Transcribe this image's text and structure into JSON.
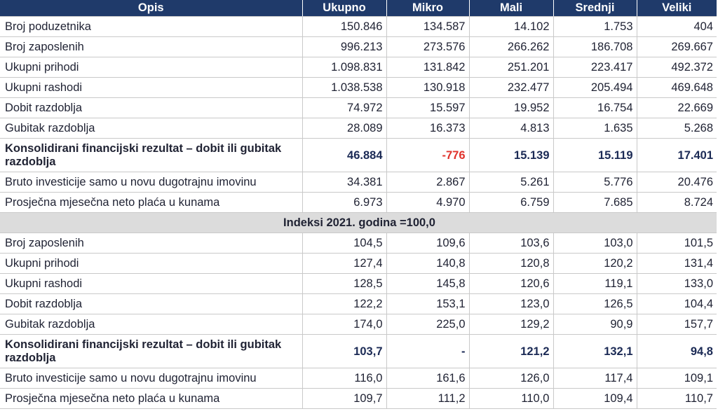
{
  "columns": [
    "Opis",
    "Ukupno",
    "Mikro",
    "Mali",
    "Srednji",
    "Veliki"
  ],
  "rows_top": [
    {
      "label": "Broj poduzetnika",
      "values": [
        "150.846",
        "134.587",
        "14.102",
        "1.753",
        "404"
      ]
    },
    {
      "label": "Broj zaposlenih",
      "values": [
        "996.213",
        "273.576",
        "266.262",
        "186.708",
        "269.667"
      ]
    },
    {
      "label": "Ukupni prihodi",
      "values": [
        "1.098.831",
        "131.842",
        "251.201",
        "223.417",
        "492.372"
      ]
    },
    {
      "label": "Ukupni rashodi",
      "values": [
        "1.038.538",
        "130.918",
        "232.477",
        "205.494",
        "469.648"
      ]
    },
    {
      "label": "Dobit razdoblja",
      "values": [
        "74.972",
        "15.597",
        "19.952",
        "16.754",
        "22.669"
      ]
    },
    {
      "label": "Gubitak razdoblja",
      "values": [
        "28.089",
        "16.373",
        "4.813",
        "1.635",
        "5.268"
      ]
    },
    {
      "label": "Konsolidirani financijski rezultat – dobit ili gubitak razdoblja",
      "values": [
        "46.884",
        "-776",
        "15.139",
        "15.119",
        "17.401"
      ],
      "bold": true,
      "negative_index": 1
    },
    {
      "label": "Bruto investicije samo u novu dugotrajnu imovinu",
      "values": [
        "34.381",
        "2.867",
        "5.261",
        "5.776",
        "20.476"
      ]
    },
    {
      "label": "Prosječna mjesečna neto plaća u kunama",
      "values": [
        "6.973",
        "4.970",
        "6.759",
        "7.685",
        "8.724"
      ]
    }
  ],
  "section_title": "Indeksi 2021. godina =100,0",
  "rows_bottom": [
    {
      "label": "Broj zaposlenih",
      "values": [
        "104,5",
        "109,6",
        "103,6",
        "103,0",
        "101,5"
      ]
    },
    {
      "label": "Ukupni prihodi",
      "values": [
        "127,4",
        "140,8",
        "120,8",
        "120,2",
        "131,4"
      ]
    },
    {
      "label": "Ukupni rashodi",
      "values": [
        "128,5",
        "145,8",
        "120,6",
        "119,1",
        "133,0"
      ]
    },
    {
      "label": "Dobit razdoblja",
      "values": [
        "122,2",
        "153,1",
        "123,0",
        "126,5",
        "104,4"
      ]
    },
    {
      "label": "Gubitak razdoblja",
      "values": [
        "174,0",
        "225,0",
        "129,2",
        "90,9",
        "157,7"
      ]
    },
    {
      "label": "Konsolidirani financijski rezultat – dobit ili gubitak razdoblja",
      "values": [
        "103,7",
        "-",
        "121,2",
        "132,1",
        "94,8"
      ],
      "bold": true
    },
    {
      "label": "Bruto investicije samo u novu dugotrajnu imovinu",
      "values": [
        "116,0",
        "161,6",
        "126,0",
        "117,4",
        "109,1"
      ]
    },
    {
      "label": "Prosječna mjesečna neto plaća u kunama",
      "values": [
        "109,7",
        "111,2",
        "110,0",
        "109,4",
        "110,7"
      ]
    }
  ],
  "colors": {
    "header_bg": "#1f3a6a",
    "section_bg": "#dcdcdc",
    "negative": "#e0322b",
    "grid": "#c9c9c9"
  }
}
